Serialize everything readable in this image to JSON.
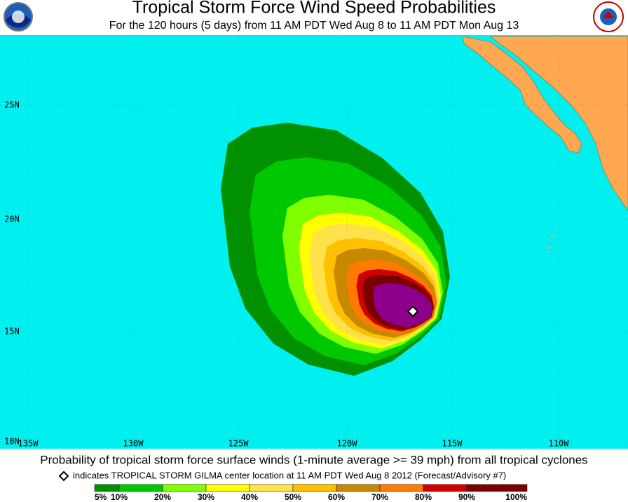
{
  "header": {
    "title": "Tropical Storm Force Wind Speed Probabilities",
    "subtitle": "For the 120 hours (5 days) from 11 AM PDT Wed Aug 8 to 11 AM PDT Mon Aug 13"
  },
  "map": {
    "lat_labels": [
      "25N",
      "20N",
      "15N",
      "10N"
    ],
    "lon_labels": [
      "135W",
      "130W",
      "125W",
      "120W",
      "115W",
      "110W"
    ]
  },
  "footer": {
    "caption": "Probability of tropical storm force surface winds (1-minute average >= 39 mph) from all tropical cyclones",
    "note": "indicates TROPICAL STORM GILMA center location at 11 AM PDT Wed Aug 8 2012 (Forecast/Advisory #7)"
  },
  "legend": {
    "labels": [
      "5%",
      "10%",
      "20%",
      "30%",
      "40%",
      "50%",
      "60%",
      "70%",
      "80%",
      "90%",
      "100%"
    ]
  }
}
